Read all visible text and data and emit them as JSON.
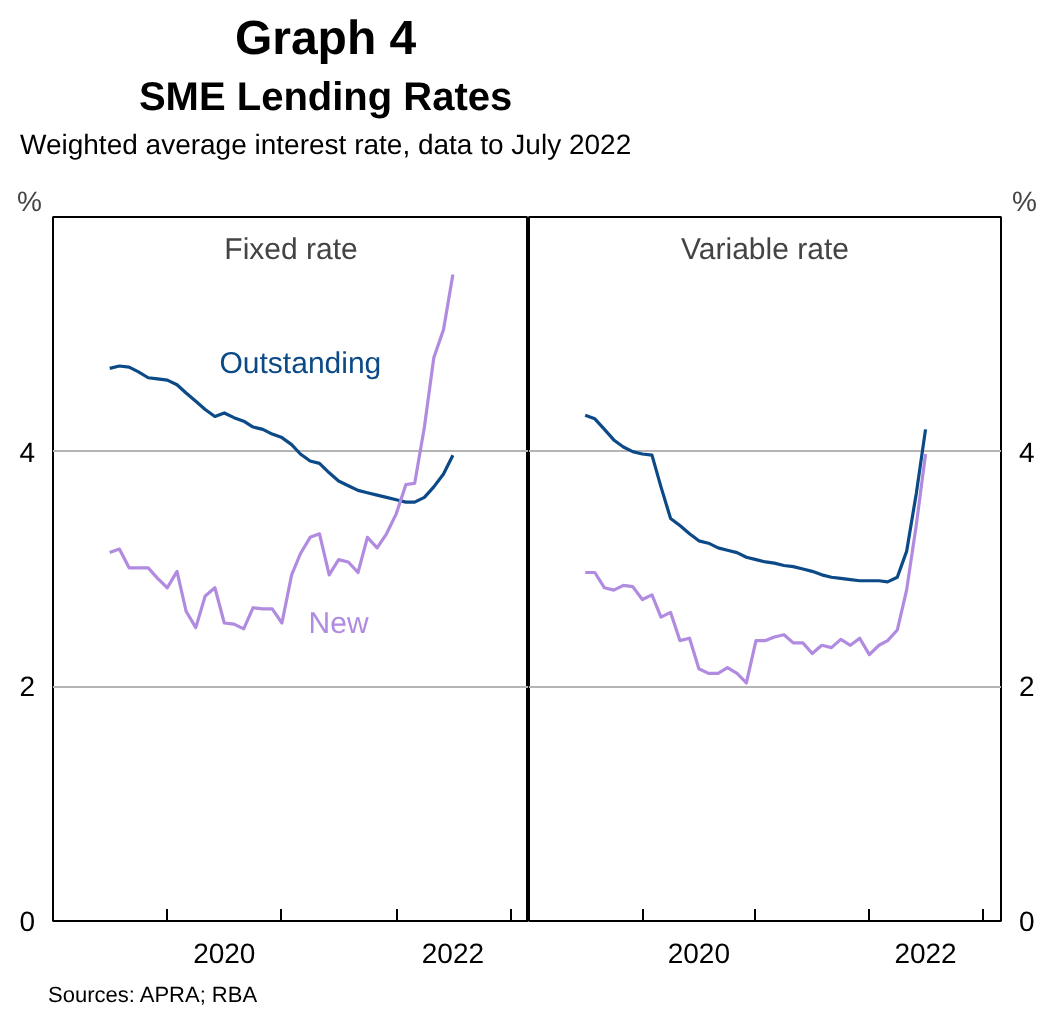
{
  "chart_data": [
    {
      "type": "line",
      "title": "Fixed rate",
      "ylabel": "%",
      "annotations": [
        "Graph 4",
        "SME Lending Rates",
        "Weighted average interest rate, data to July 2022",
        "Sources: APRA; RBA"
      ],
      "x": [
        "2019-07",
        "2019-08",
        "2019-09",
        "2019-10",
        "2019-11",
        "2019-12",
        "2020-01",
        "2020-02",
        "2020-03",
        "2020-04",
        "2020-05",
        "2020-06",
        "2020-07",
        "2020-08",
        "2020-09",
        "2020-10",
        "2020-11",
        "2020-12",
        "2021-01",
        "2021-02",
        "2021-03",
        "2021-04",
        "2021-05",
        "2021-06",
        "2021-07",
        "2021-08",
        "2021-09",
        "2021-10",
        "2021-11",
        "2021-12",
        "2022-01",
        "2022-02",
        "2022-03",
        "2022-04",
        "2022-05",
        "2022-06",
        "2022-07"
      ],
      "xlim": [
        "2019-01",
        "2023-03"
      ],
      "xticks": [
        {
          "value": "2020",
          "label": null
        },
        {
          "value": "2020-07",
          "label": "2020"
        },
        {
          "value": "2021",
          "label": null
        },
        {
          "value": "2022",
          "label": null
        },
        {
          "value": "2022-07",
          "label": "2022"
        },
        {
          "value": "2023",
          "label": null
        }
      ],
      "ylim": [
        0,
        6
      ],
      "yticks": [
        0,
        2,
        4
      ],
      "grid": "y",
      "series": [
        {
          "name": "Outstanding",
          "color": "#0b4a86",
          "values": [
            4.71,
            4.73,
            4.72,
            4.68,
            4.63,
            4.62,
            4.61,
            4.57,
            4.5,
            4.43,
            4.36,
            4.3,
            4.33,
            4.29,
            4.26,
            4.21,
            4.19,
            4.15,
            4.12,
            4.06,
            3.98,
            3.92,
            3.9,
            3.82,
            3.75,
            3.71,
            3.67,
            3.65,
            3.63,
            3.61,
            3.59,
            3.57,
            3.57,
            3.61,
            3.7,
            3.81,
            3.97
          ]
        },
        {
          "name": "New",
          "color": "#b08be0",
          "values": [
            3.14,
            3.17,
            3.01,
            3.01,
            3.01,
            2.92,
            2.84,
            2.98,
            2.64,
            2.5,
            2.77,
            2.84,
            2.54,
            2.53,
            2.49,
            2.67,
            2.66,
            2.66,
            2.54,
            2.95,
            3.13,
            3.27,
            3.3,
            2.95,
            3.08,
            3.06,
            2.97,
            3.27,
            3.18,
            3.3,
            3.47,
            3.72,
            3.73,
            4.21,
            4.8,
            5.04,
            5.51
          ]
        }
      ]
    },
    {
      "type": "line",
      "title": "Variable rate",
      "ylabel": "%",
      "x": [
        "2019-07",
        "2019-08",
        "2019-09",
        "2019-10",
        "2019-11",
        "2019-12",
        "2020-01",
        "2020-02",
        "2020-03",
        "2020-04",
        "2020-05",
        "2020-06",
        "2020-07",
        "2020-08",
        "2020-09",
        "2020-10",
        "2020-11",
        "2020-12",
        "2021-01",
        "2021-02",
        "2021-03",
        "2021-04",
        "2021-05",
        "2021-06",
        "2021-07",
        "2021-08",
        "2021-09",
        "2021-10",
        "2021-11",
        "2021-12",
        "2022-01",
        "2022-02",
        "2022-03",
        "2022-04",
        "2022-05",
        "2022-06",
        "2022-07"
      ],
      "xlim": [
        "2019-01",
        "2023-03"
      ],
      "xticks": [
        {
          "value": "2020",
          "label": null
        },
        {
          "value": "2020-07",
          "label": "2020"
        },
        {
          "value": "2021",
          "label": null
        },
        {
          "value": "2022",
          "label": null
        },
        {
          "value": "2022-07",
          "label": "2022"
        },
        {
          "value": "2023",
          "label": null
        }
      ],
      "ylim": [
        0,
        6
      ],
      "yticks": [
        0,
        2,
        4
      ],
      "grid": "y",
      "series": [
        {
          "color": "#0b4a86",
          "values": [
            4.31,
            4.28,
            4.19,
            4.1,
            4.04,
            4.0,
            3.98,
            3.97,
            3.7,
            3.43,
            3.37,
            3.3,
            3.24,
            3.22,
            3.18,
            3.16,
            3.14,
            3.1,
            3.08,
            3.06,
            3.05,
            3.03,
            3.02,
            3.0,
            2.98,
            2.95,
            2.93,
            2.92,
            2.91,
            2.9,
            2.9,
            2.9,
            2.89,
            2.93,
            3.15,
            3.64,
            4.19
          ]
        },
        {
          "color": "#b08be0",
          "values": [
            2.97,
            2.97,
            2.84,
            2.82,
            2.86,
            2.85,
            2.74,
            2.78,
            2.59,
            2.63,
            2.39,
            2.41,
            2.15,
            2.11,
            2.11,
            2.16,
            2.11,
            2.03,
            2.39,
            2.39,
            2.42,
            2.44,
            2.37,
            2.37,
            2.28,
            2.35,
            2.33,
            2.4,
            2.35,
            2.41,
            2.27,
            2.35,
            2.39,
            2.48,
            2.82,
            3.37,
            3.98
          ]
        }
      ]
    }
  ]
}
